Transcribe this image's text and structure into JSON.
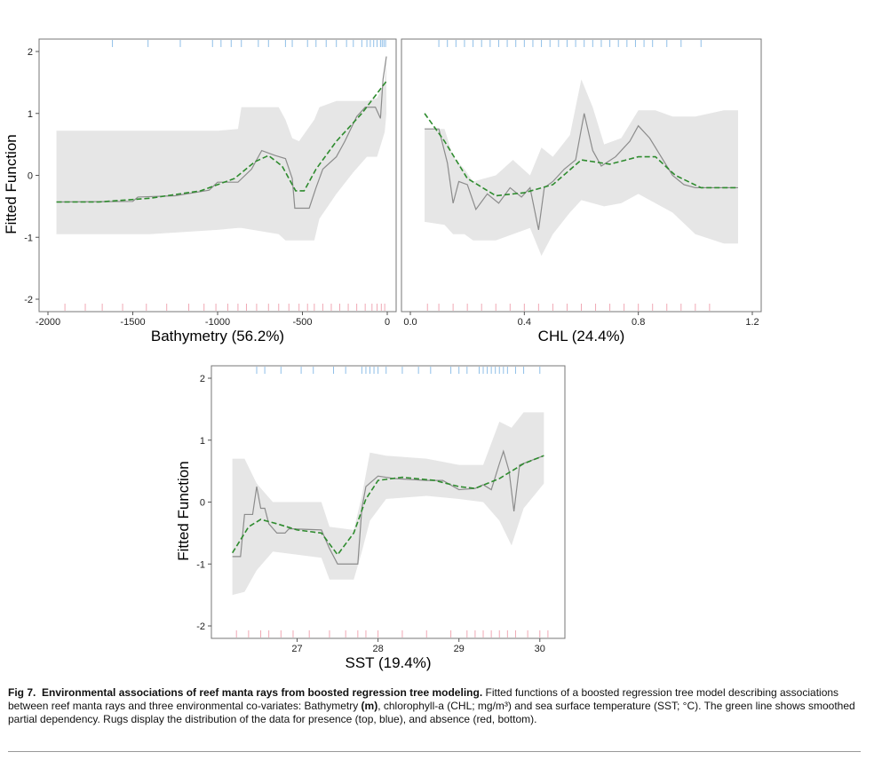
{
  "caption": {
    "label": "Fig 7.",
    "title": "Environmental associations of reef manta rays from boosted regression tree modeling.",
    "text_1": " Fitted functions of a boosted regression tree model describing associations between reef manta rays and three environmental co-variates: Bathymetry ",
    "unit_bold": "(m)",
    "text_2": ", chlorophyll-a (CHL; mg/m³) and sea surface temperature (SST; °C). The green line shows smoothed partial dependency. Rugs display the distribution of the data for presence (top, blue), and absence (red, bottom)."
  },
  "colors": {
    "band": "#e6e6e6",
    "fitted": "#8c8c8c",
    "smooth": "#2e8b2e",
    "rug_presence": "#8fbfe8",
    "rug_absence": "#f0a8b4",
    "frame": "#777777"
  },
  "chart_data": [
    {
      "type": "line",
      "xlabel": "Bathymetry (56.2%)",
      "ylabel": "Fitted Function",
      "xlim": [
        -2000,
        0
      ],
      "ylim": [
        -2,
        2
      ],
      "xticks": [
        -2000,
        -1500,
        -1000,
        -500,
        0
      ],
      "xtick_labels": [
        "-2000",
        "-1500",
        "-1000",
        "-500",
        "0"
      ],
      "yticks": [
        2,
        1,
        0,
        -1,
        -2
      ],
      "ytick_labels": [
        "2",
        "1",
        "0",
        "-1",
        "-2"
      ],
      "band": [
        {
          "x": -1950,
          "lo": -0.95,
          "hi": 0.72
        },
        {
          "x": -1400,
          "lo": -0.95,
          "hi": 0.72
        },
        {
          "x": -1000,
          "lo": -0.88,
          "hi": 0.72
        },
        {
          "x": -880,
          "lo": -0.85,
          "hi": 0.75
        },
        {
          "x": -860,
          "lo": -0.85,
          "hi": 1.1
        },
        {
          "x": -640,
          "lo": -0.95,
          "hi": 1.1
        },
        {
          "x": -600,
          "lo": -1.05,
          "hi": 0.9
        },
        {
          "x": -560,
          "lo": -1.05,
          "hi": 0.6
        },
        {
          "x": -520,
          "lo": -1.05,
          "hi": 0.55
        },
        {
          "x": -430,
          "lo": -1.05,
          "hi": 0.9
        },
        {
          "x": -400,
          "lo": -0.7,
          "hi": 1.1
        },
        {
          "x": -300,
          "lo": -0.3,
          "hi": 1.2
        },
        {
          "x": -200,
          "lo": 0.05,
          "hi": 1.2
        },
        {
          "x": -120,
          "lo": 0.3,
          "hi": 1.2
        },
        {
          "x": -60,
          "lo": 0.3,
          "hi": 1.25
        },
        {
          "x": -15,
          "lo": 0.7,
          "hi": 1.5
        },
        {
          "x": -5,
          "lo": 1.0,
          "hi": 1.9
        }
      ],
      "fitted": [
        {
          "x": -1950,
          "y": -0.43
        },
        {
          "x": -1500,
          "y": -0.42
        },
        {
          "x": -1470,
          "y": -0.35
        },
        {
          "x": -1250,
          "y": -0.33
        },
        {
          "x": -1050,
          "y": -0.24
        },
        {
          "x": -1000,
          "y": -0.11
        },
        {
          "x": -880,
          "y": -0.11
        },
        {
          "x": -800,
          "y": 0.1
        },
        {
          "x": -740,
          "y": 0.4
        },
        {
          "x": -660,
          "y": 0.32
        },
        {
          "x": -600,
          "y": 0.27
        },
        {
          "x": -560,
          "y": -0.05
        },
        {
          "x": -545,
          "y": -0.53
        },
        {
          "x": -460,
          "y": -0.53
        },
        {
          "x": -420,
          "y": -0.2
        },
        {
          "x": -380,
          "y": 0.1
        },
        {
          "x": -300,
          "y": 0.3
        },
        {
          "x": -250,
          "y": 0.55
        },
        {
          "x": -180,
          "y": 0.95
        },
        {
          "x": -130,
          "y": 1.1
        },
        {
          "x": -70,
          "y": 1.1
        },
        {
          "x": -40,
          "y": 0.92
        },
        {
          "x": -25,
          "y": 1.55
        },
        {
          "x": -5,
          "y": 1.92
        }
      ],
      "smooth": [
        {
          "x": -1950,
          "y": -0.43
        },
        {
          "x": -1700,
          "y": -0.43
        },
        {
          "x": -1400,
          "y": -0.37
        },
        {
          "x": -1100,
          "y": -0.25
        },
        {
          "x": -900,
          "y": -0.05
        },
        {
          "x": -780,
          "y": 0.22
        },
        {
          "x": -700,
          "y": 0.32
        },
        {
          "x": -620,
          "y": 0.15
        },
        {
          "x": -540,
          "y": -0.25
        },
        {
          "x": -490,
          "y": -0.25
        },
        {
          "x": -420,
          "y": 0.1
        },
        {
          "x": -300,
          "y": 0.55
        },
        {
          "x": -150,
          "y": 1.0
        },
        {
          "x": -5,
          "y": 1.52
        }
      ],
      "rug_presence": [
        -1620,
        -1410,
        -1220,
        -1030,
        -980,
        -920,
        -860,
        -760,
        -700,
        -600,
        -560,
        -470,
        -420,
        -360,
        -300,
        -240,
        -200,
        -150,
        -120,
        -100,
        -80,
        -60,
        -40,
        -30,
        -20,
        -10
      ],
      "rug_absence": [
        -1900,
        -1780,
        -1680,
        -1560,
        -1420,
        -1300,
        -1170,
        -1080,
        -1010,
        -940,
        -880,
        -830,
        -770,
        -700,
        -640,
        -580,
        -520,
        -470,
        -430,
        -380,
        -330,
        -280,
        -230,
        -180,
        -130,
        -90,
        -60,
        -35,
        -15
      ]
    },
    {
      "type": "line",
      "xlabel": "CHL (24.4%)",
      "ylabel": "",
      "xlim": [
        0,
        1.2
      ],
      "ylim": [
        -2,
        2
      ],
      "xticks": [
        0,
        0.4,
        0.8,
        1.2
      ],
      "xtick_labels": [
        "0.0",
        "0.4",
        "0.8",
        "1.2"
      ],
      "band": [
        {
          "x": 0.05,
          "lo": -0.75,
          "hi": 0.75
        },
        {
          "x": 0.12,
          "lo": -0.8,
          "hi": 0.75
        },
        {
          "x": 0.15,
          "lo": -0.95,
          "hi": 0.3
        },
        {
          "x": 0.19,
          "lo": -0.95,
          "hi": 0.1
        },
        {
          "x": 0.22,
          "lo": -1.05,
          "hi": -0.1
        },
        {
          "x": 0.3,
          "lo": -1.05,
          "hi": 0.0
        },
        {
          "x": 0.36,
          "lo": -0.95,
          "hi": 0.25
        },
        {
          "x": 0.42,
          "lo": -0.85,
          "hi": 0.0
        },
        {
          "x": 0.46,
          "lo": -1.3,
          "hi": 0.45
        },
        {
          "x": 0.5,
          "lo": -0.95,
          "hi": 0.3
        },
        {
          "x": 0.56,
          "lo": -0.6,
          "hi": 0.65
        },
        {
          "x": 0.6,
          "lo": -0.4,
          "hi": 1.55
        },
        {
          "x": 0.64,
          "lo": -0.45,
          "hi": 1.1
        },
        {
          "x": 0.68,
          "lo": -0.5,
          "hi": 0.5
        },
        {
          "x": 0.74,
          "lo": -0.45,
          "hi": 0.6
        },
        {
          "x": 0.8,
          "lo": -0.3,
          "hi": 1.05
        },
        {
          "x": 0.86,
          "lo": -0.45,
          "hi": 1.05
        },
        {
          "x": 0.92,
          "lo": -0.6,
          "hi": 0.95
        },
        {
          "x": 1.0,
          "lo": -0.95,
          "hi": 0.95
        },
        {
          "x": 1.1,
          "lo": -1.1,
          "hi": 1.05
        },
        {
          "x": 1.15,
          "lo": -1.1,
          "hi": 1.05
        }
      ],
      "fitted": [
        {
          "x": 0.05,
          "y": 0.75
        },
        {
          "x": 0.1,
          "y": 0.75
        },
        {
          "x": 0.13,
          "y": 0.2
        },
        {
          "x": 0.15,
          "y": -0.45
        },
        {
          "x": 0.17,
          "y": -0.1
        },
        {
          "x": 0.2,
          "y": -0.15
        },
        {
          "x": 0.23,
          "y": -0.55
        },
        {
          "x": 0.27,
          "y": -0.3
        },
        {
          "x": 0.31,
          "y": -0.45
        },
        {
          "x": 0.35,
          "y": -0.2
        },
        {
          "x": 0.39,
          "y": -0.35
        },
        {
          "x": 0.42,
          "y": -0.2
        },
        {
          "x": 0.45,
          "y": -0.88
        },
        {
          "x": 0.47,
          "y": -0.2
        },
        {
          "x": 0.5,
          "y": -0.1
        },
        {
          "x": 0.54,
          "y": 0.1
        },
        {
          "x": 0.58,
          "y": 0.25
        },
        {
          "x": 0.61,
          "y": 1.0
        },
        {
          "x": 0.64,
          "y": 0.4
        },
        {
          "x": 0.67,
          "y": 0.15
        },
        {
          "x": 0.72,
          "y": 0.3
        },
        {
          "x": 0.77,
          "y": 0.55
        },
        {
          "x": 0.8,
          "y": 0.8
        },
        {
          "x": 0.84,
          "y": 0.6
        },
        {
          "x": 0.88,
          "y": 0.3
        },
        {
          "x": 0.92,
          "y": 0.0
        },
        {
          "x": 0.96,
          "y": -0.15
        },
        {
          "x": 1.0,
          "y": -0.2
        },
        {
          "x": 1.15,
          "y": -0.2
        }
      ],
      "smooth": [
        {
          "x": 0.05,
          "y": 1.0
        },
        {
          "x": 0.12,
          "y": 0.55
        },
        {
          "x": 0.2,
          "y": -0.05
        },
        {
          "x": 0.3,
          "y": -0.33
        },
        {
          "x": 0.4,
          "y": -0.28
        },
        {
          "x": 0.5,
          "y": -0.15
        },
        {
          "x": 0.6,
          "y": 0.25
        },
        {
          "x": 0.7,
          "y": 0.18
        },
        {
          "x": 0.8,
          "y": 0.3
        },
        {
          "x": 0.86,
          "y": 0.3
        },
        {
          "x": 0.93,
          "y": 0.0
        },
        {
          "x": 1.02,
          "y": -0.2
        },
        {
          "x": 1.15,
          "y": -0.2
        }
      ],
      "rug_presence": [
        0.1,
        0.13,
        0.16,
        0.19,
        0.22,
        0.25,
        0.28,
        0.31,
        0.34,
        0.37,
        0.4,
        0.43,
        0.46,
        0.49,
        0.52,
        0.55,
        0.58,
        0.61,
        0.64,
        0.67,
        0.7,
        0.73,
        0.76,
        0.79,
        0.82,
        0.85,
        0.9,
        0.95,
        1.02
      ],
      "rug_absence": [
        0.06,
        0.1,
        0.15,
        0.2,
        0.25,
        0.3,
        0.35,
        0.4,
        0.45,
        0.5,
        0.55,
        0.6,
        0.65,
        0.7,
        0.75,
        0.8,
        0.85,
        0.9,
        0.95,
        1.0,
        1.05
      ]
    },
    {
      "type": "line",
      "xlabel": "SST (19.4%)",
      "ylabel": "Fitted Function",
      "xlim": [
        26.05,
        30.2
      ],
      "ylim": [
        -2,
        2
      ],
      "xticks": [
        27,
        28,
        29,
        30
      ],
      "xtick_labels": [
        "27",
        "28",
        "29",
        "30"
      ],
      "yticks": [
        2,
        1,
        0,
        -1,
        -2
      ],
      "ytick_labels": [
        "2",
        "1",
        "0",
        "-1",
        "-2"
      ],
      "band": [
        {
          "x": 26.2,
          "lo": -1.5,
          "hi": 0.7
        },
        {
          "x": 26.35,
          "lo": -1.45,
          "hi": 0.7
        },
        {
          "x": 26.5,
          "lo": -1.1,
          "hi": 0.3
        },
        {
          "x": 26.7,
          "lo": -0.8,
          "hi": 0.0
        },
        {
          "x": 27.0,
          "lo": -0.85,
          "hi": 0.0
        },
        {
          "x": 27.3,
          "lo": -0.9,
          "hi": 0.0
        },
        {
          "x": 27.4,
          "lo": -1.25,
          "hi": -0.4
        },
        {
          "x": 27.7,
          "lo": -1.25,
          "hi": -0.45
        },
        {
          "x": 27.8,
          "lo": -0.8,
          "hi": 0.1
        },
        {
          "x": 27.9,
          "lo": -0.3,
          "hi": 0.8
        },
        {
          "x": 28.1,
          "lo": 0.05,
          "hi": 0.75
        },
        {
          "x": 28.6,
          "lo": 0.1,
          "hi": 0.7
        },
        {
          "x": 29.0,
          "lo": 0.05,
          "hi": 0.6
        },
        {
          "x": 29.3,
          "lo": 0.0,
          "hi": 0.6
        },
        {
          "x": 29.5,
          "lo": -0.3,
          "hi": 1.3
        },
        {
          "x": 29.65,
          "lo": -0.7,
          "hi": 1.2
        },
        {
          "x": 29.8,
          "lo": -0.1,
          "hi": 1.45
        },
        {
          "x": 30.05,
          "lo": 0.3,
          "hi": 1.45
        }
      ],
      "fitted": [
        {
          "x": 26.2,
          "y": -0.88
        },
        {
          "x": 26.3,
          "y": -0.88
        },
        {
          "x": 26.35,
          "y": -0.2
        },
        {
          "x": 26.45,
          "y": -0.2
        },
        {
          "x": 26.5,
          "y": 0.25
        },
        {
          "x": 26.55,
          "y": -0.1
        },
        {
          "x": 26.6,
          "y": -0.1
        },
        {
          "x": 26.65,
          "y": -0.35
        },
        {
          "x": 26.75,
          "y": -0.5
        },
        {
          "x": 26.85,
          "y": -0.5
        },
        {
          "x": 26.9,
          "y": -0.43
        },
        {
          "x": 27.3,
          "y": -0.45
        },
        {
          "x": 27.4,
          "y": -0.75
        },
        {
          "x": 27.5,
          "y": -1.0
        },
        {
          "x": 27.75,
          "y": -1.0
        },
        {
          "x": 27.8,
          "y": -0.1
        },
        {
          "x": 27.85,
          "y": 0.25
        },
        {
          "x": 28.0,
          "y": 0.42
        },
        {
          "x": 28.2,
          "y": 0.38
        },
        {
          "x": 28.6,
          "y": 0.35
        },
        {
          "x": 28.8,
          "y": 0.35
        },
        {
          "x": 29.0,
          "y": 0.2
        },
        {
          "x": 29.2,
          "y": 0.22
        },
        {
          "x": 29.3,
          "y": 0.28
        },
        {
          "x": 29.4,
          "y": 0.2
        },
        {
          "x": 29.5,
          "y": 0.62
        },
        {
          "x": 29.55,
          "y": 0.82
        },
        {
          "x": 29.62,
          "y": 0.5
        },
        {
          "x": 29.68,
          "y": -0.15
        },
        {
          "x": 29.75,
          "y": 0.6
        },
        {
          "x": 29.85,
          "y": 0.65
        },
        {
          "x": 29.95,
          "y": 0.7
        },
        {
          "x": 30.05,
          "y": 0.75
        }
      ],
      "smooth": [
        {
          "x": 26.2,
          "y": -0.82
        },
        {
          "x": 26.4,
          "y": -0.4
        },
        {
          "x": 26.55,
          "y": -0.28
        },
        {
          "x": 26.75,
          "y": -0.35
        },
        {
          "x": 27.0,
          "y": -0.45
        },
        {
          "x": 27.3,
          "y": -0.5
        },
        {
          "x": 27.5,
          "y": -0.85
        },
        {
          "x": 27.7,
          "y": -0.5
        },
        {
          "x": 27.85,
          "y": 0.05
        },
        {
          "x": 28.0,
          "y": 0.35
        },
        {
          "x": 28.3,
          "y": 0.4
        },
        {
          "x": 28.7,
          "y": 0.35
        },
        {
          "x": 29.0,
          "y": 0.25
        },
        {
          "x": 29.2,
          "y": 0.22
        },
        {
          "x": 29.5,
          "y": 0.38
        },
        {
          "x": 29.8,
          "y": 0.62
        },
        {
          "x": 30.05,
          "y": 0.75
        }
      ],
      "rug_presence": [
        26.5,
        26.6,
        26.8,
        27.05,
        27.2,
        27.45,
        27.6,
        27.8,
        27.85,
        27.9,
        27.95,
        28.0,
        28.1,
        28.3,
        28.5,
        28.65,
        28.9,
        29.0,
        29.1,
        29.25,
        29.3,
        29.35,
        29.4,
        29.45,
        29.5,
        29.55,
        29.6,
        29.7,
        29.8,
        30.0
      ],
      "rug_absence": [
        26.25,
        26.4,
        26.55,
        26.65,
        26.8,
        26.95,
        27.15,
        27.4,
        27.6,
        27.75,
        27.85,
        28.0,
        28.3,
        28.6,
        28.9,
        29.1,
        29.2,
        29.3,
        29.4,
        29.5,
        29.6,
        29.7,
        29.85,
        30.0,
        30.1
      ]
    }
  ]
}
